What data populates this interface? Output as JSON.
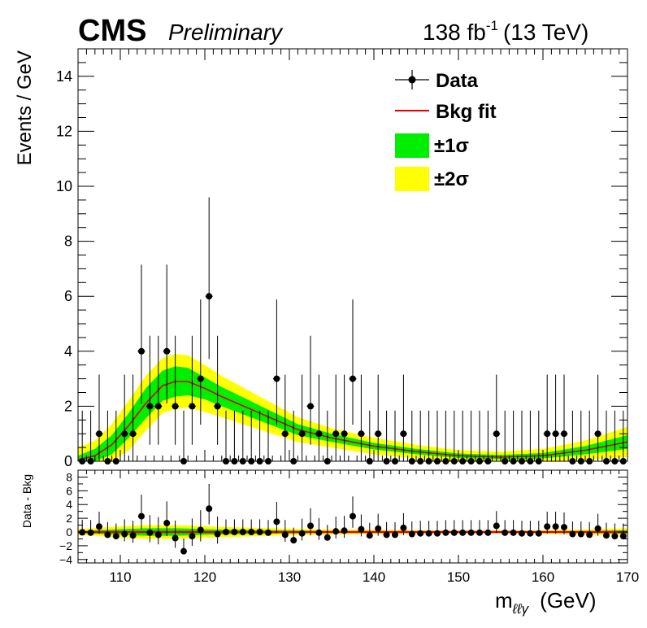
{
  "header": {
    "experiment": "CMS",
    "status": "Preliminary",
    "lumi_value": "138 fb",
    "lumi_exp": "-1",
    "energy": "(13 TeV)"
  },
  "legend": {
    "data": "Data",
    "bkg": "Bkg fit",
    "sigma1": "±1σ",
    "sigma2": "±2σ"
  },
  "colors": {
    "band1": "#00ee00",
    "band2": "#ffff00",
    "fit": "#dd0000",
    "data": "#000000"
  },
  "chart_data": [
    {
      "type": "scatter",
      "panel": "main",
      "ylabel": "Events / GeV",
      "xlim": [
        105,
        170
      ],
      "ylim": [
        0,
        15
      ],
      "yticks": [
        0,
        2,
        4,
        6,
        8,
        10,
        12,
        14
      ],
      "ytick_labels": [
        "0",
        "2",
        "4",
        "6",
        "8",
        "10",
        "12",
        "14"
      ],
      "data_x": [
        105.5,
        106.5,
        107.5,
        108.5,
        109.5,
        110.5,
        111.5,
        112.5,
        113.5,
        114.5,
        115.5,
        116.5,
        117.5,
        118.5,
        119.5,
        120.5,
        121.5,
        122.5,
        123.5,
        124.5,
        125.5,
        126.5,
        127.5,
        128.5,
        129.5,
        130.5,
        131.5,
        132.5,
        133.5,
        134.5,
        135.5,
        136.5,
        137.5,
        138.5,
        139.5,
        140.5,
        141.5,
        142.5,
        143.5,
        144.5,
        145.5,
        146.5,
        147.5,
        148.5,
        149.5,
        150.5,
        151.5,
        152.5,
        153.5,
        154.5,
        155.5,
        156.5,
        157.5,
        158.5,
        159.5,
        160.5,
        161.5,
        162.5,
        163.5,
        164.5,
        165.5,
        166.5,
        167.5,
        168.5,
        169.5
      ],
      "data_y": [
        0,
        0,
        1,
        0,
        0,
        1,
        1,
        4,
        2,
        2,
        4,
        2,
        0,
        2,
        3,
        6,
        2,
        0,
        0,
        0,
        0,
        0,
        0,
        3,
        1,
        0,
        1,
        2,
        1,
        0,
        1,
        1,
        3,
        1,
        0,
        1,
        0,
        0,
        1,
        0,
        0,
        0,
        0,
        0,
        0,
        0,
        0,
        0,
        0,
        1,
        0,
        0,
        0,
        0,
        0,
        1,
        1,
        1,
        0,
        0,
        0,
        1,
        0,
        0,
        0
      ],
      "fit_x": [
        105,
        107,
        109,
        111,
        113,
        115,
        116.5,
        118,
        120,
        122,
        125,
        128,
        131,
        135,
        140,
        145,
        150,
        155,
        160,
        165,
        170
      ],
      "fit_y": [
        0.05,
        0.2,
        0.6,
        1.3,
        2.1,
        2.75,
        2.9,
        2.9,
        2.65,
        2.35,
        1.95,
        1.55,
        1.15,
        0.85,
        0.55,
        0.35,
        0.2,
        0.15,
        0.2,
        0.4,
        0.7
      ],
      "band1_halfwidth": [
        0.15,
        0.25,
        0.35,
        0.45,
        0.55,
        0.55,
        0.55,
        0.5,
        0.4,
        0.35,
        0.3,
        0.25,
        0.2,
        0.15,
        0.12,
        0.1,
        0.08,
        0.08,
        0.1,
        0.15,
        0.25
      ],
      "band2_halfwidth": [
        0.45,
        0.55,
        0.75,
        0.9,
        1.0,
        1.0,
        1.0,
        0.95,
        0.85,
        0.75,
        0.65,
        0.55,
        0.45,
        0.35,
        0.3,
        0.25,
        0.2,
        0.2,
        0.25,
        0.35,
        0.55
      ],
      "legend_position": "top-right"
    },
    {
      "type": "scatter",
      "panel": "ratio",
      "ylabel": "Data - Bkg",
      "xlabel": "m",
      "xlabel_sub": "ℓℓγ",
      "xlabel_unit": "(GeV)",
      "xlim": [
        105,
        170
      ],
      "ylim": [
        -4.5,
        9
      ],
      "yticks": [
        -4,
        -2,
        0,
        2,
        4,
        6,
        8
      ],
      "ytick_labels": [
        "−4",
        "−2",
        "0",
        "2",
        "4",
        "6",
        "8"
      ],
      "xticks": [
        110,
        120,
        130,
        140,
        150,
        160,
        170
      ],
      "xtick_labels": [
        "110",
        "120",
        "130",
        "140",
        "150",
        "160",
        "170"
      ],
      "residual_y": [
        -0.05,
        -0.1,
        0.8,
        -0.4,
        -0.6,
        -0.3,
        -0.5,
        2.3,
        -0.1,
        -0.4,
        1.3,
        -0.9,
        -2.8,
        -0.6,
        0.3,
        3.4,
        -0.3,
        0,
        0,
        0,
        0,
        0,
        -0.1,
        1.5,
        -0.4,
        -1.2,
        -0.2,
        0.9,
        -0.1,
        -0.8,
        0.1,
        0.2,
        2.3,
        0.4,
        -0.5,
        0.5,
        -0.4,
        -0.4,
        0.6,
        -0.3,
        -0.2,
        -0.2,
        -0.2,
        -0.1,
        -0.1,
        -0.1,
        -0.1,
        -0.1,
        -0.1,
        0.9,
        -0.1,
        -0.1,
        -0.2,
        -0.2,
        -0.2,
        0.8,
        0.8,
        0.7,
        -0.3,
        -0.3,
        -0.4,
        0.5,
        -0.5,
        -0.6,
        -0.6
      ]
    }
  ]
}
